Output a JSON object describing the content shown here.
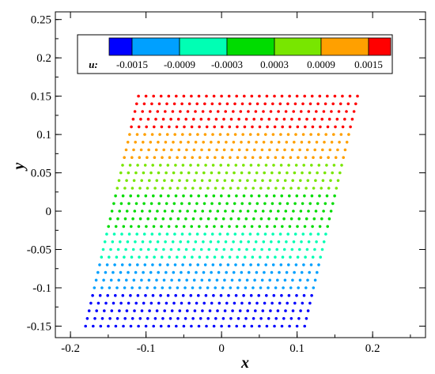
{
  "chart_data": {
    "type": "scatter",
    "xlabel": "x",
    "ylabel": "y",
    "xlim": [
      -0.22,
      0.27
    ],
    "ylim": [
      -0.165,
      0.26
    ],
    "xticks": [
      -0.2,
      -0.1,
      0,
      0.1,
      0.2
    ],
    "xtick_labels": [
      "-0.2",
      "-0.1",
      "0",
      "0.1",
      "0.2"
    ],
    "yticks": [
      -0.15,
      -0.1,
      -0.05,
      0,
      0.05,
      0.1,
      0.15,
      0.2,
      0.25
    ],
    "ytick_labels": [
      "-0.15",
      "-0.1",
      "-0.05",
      "0",
      "0.05",
      "0.1",
      "0.15",
      "0.2",
      "0.25"
    ],
    "grid": false,
    "grid_rows": 31,
    "points_per_row": 30,
    "y_range": [
      -0.15,
      0.15
    ],
    "bottom_row_x_range": [
      -0.18,
      0.11
    ],
    "top_row_x_range": [
      -0.11,
      0.18
    ],
    "colorbar": {
      "variable": "u:",
      "tick_labels": [
        "-0.0015",
        "-0.0009",
        "-0.0003",
        "0.0003",
        "0.0009",
        "0.0015"
      ],
      "level_colors": [
        "#0000ff",
        "#00a0ff",
        "#00ffb4",
        "#00dc00",
        "#78e600",
        "#ffa000",
        "#ff0000"
      ]
    }
  }
}
